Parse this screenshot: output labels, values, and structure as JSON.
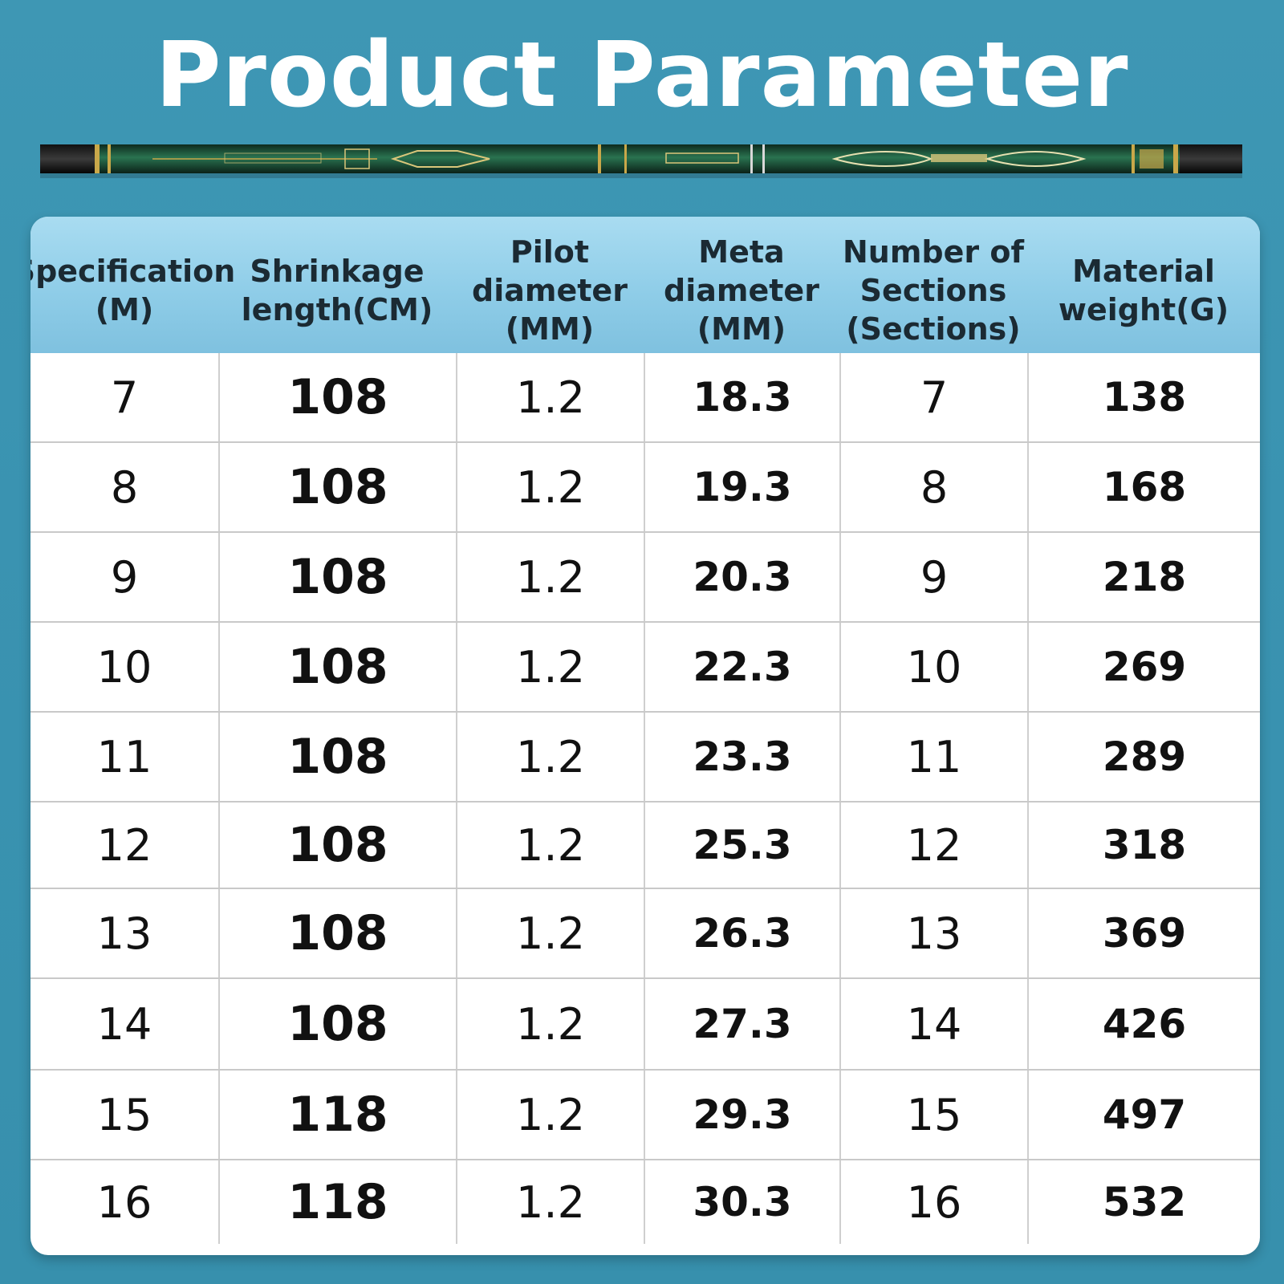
{
  "title": "Product Parameter",
  "colors": {
    "background": "#3a93b1",
    "header_fill": "#8fcde8",
    "rod_green": "#1f5c3e",
    "rod_gold": "#c9a84a"
  },
  "table": {
    "headers": [
      "Specification\n(M)",
      "Shrinkage\nlength(CM)",
      "Pilot\ndiameter\n(MM)",
      "Meta\ndiameter\n(MM)",
      "Number of\nSections\n(Sections)",
      "Material\nweight(G)"
    ],
    "rows": [
      [
        "7",
        "108",
        "1.2",
        "18.3",
        "7",
        "138"
      ],
      [
        "8",
        "108",
        "1.2",
        "19.3",
        "8",
        "168"
      ],
      [
        "9",
        "108",
        "1.2",
        "20.3",
        "9",
        "218"
      ],
      [
        "10",
        "108",
        "1.2",
        "22.3",
        "10",
        "269"
      ],
      [
        "11",
        "108",
        "1.2",
        "23.3",
        "11",
        "289"
      ],
      [
        "12",
        "108",
        "1.2",
        "25.3",
        "12",
        "318"
      ],
      [
        "13",
        "108",
        "1.2",
        "26.3",
        "13",
        "369"
      ],
      [
        "14",
        "108",
        "1.2",
        "27.3",
        "14",
        "426"
      ],
      [
        "15",
        "118",
        "1.2",
        "29.3",
        "15",
        "497"
      ],
      [
        "16",
        "118",
        "1.2",
        "30.3",
        "16",
        "532"
      ]
    ]
  }
}
